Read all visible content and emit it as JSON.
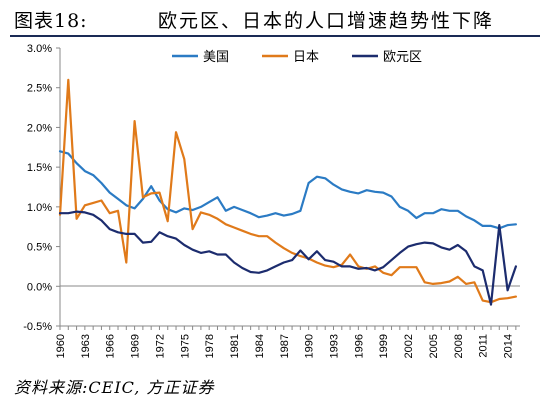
{
  "header": {
    "figure_label": "图表18:",
    "title": "欧元区、日本的人口增速趋势性下降"
  },
  "source": "资料来源:CEIC, 方正证券",
  "colors": {
    "usa": "#2b7bc4",
    "japan": "#e07a1a",
    "euro": "#1c2c6e",
    "axis": "#888888",
    "rule": "#1a2a55"
  },
  "chart_data": {
    "type": "line",
    "title": "",
    "xlabel": "",
    "ylabel": "",
    "xlim": [
      1960,
      2015.5
    ],
    "ylim": [
      -0.5,
      3.0
    ],
    "y_ticks": [
      -0.5,
      0.0,
      0.5,
      1.0,
      1.5,
      2.0,
      2.5,
      3.0
    ],
    "y_tick_labels": [
      "-0.5%",
      "0.0%",
      "0.5%",
      "1.0%",
      "1.5%",
      "2.0%",
      "2.5%",
      "3.0%"
    ],
    "x_ticks": [
      1960,
      1963,
      1966,
      1969,
      1972,
      1975,
      1978,
      1981,
      1984,
      1987,
      1990,
      1993,
      1996,
      1999,
      2002,
      2005,
      2008,
      2011,
      2014
    ],
    "x_tick_labels": [
      "1960",
      "1963",
      "1966",
      "1969",
      "1972",
      "1975",
      "1978",
      "1981",
      "1984",
      "1987",
      "1990",
      "1993",
      "1996",
      "1999",
      "2002",
      "2005",
      "2008",
      "2011",
      "2014"
    ],
    "grid": false,
    "legend_position": "top",
    "series": [
      {
        "name": "美国",
        "color": "#2b7bc4",
        "x": [
          1960,
          1961,
          1962,
          1963,
          1964,
          1965,
          1966,
          1967,
          1968,
          1969,
          1970,
          1971,
          1972,
          1973,
          1974,
          1975,
          1976,
          1977,
          1978,
          1979,
          1980,
          1981,
          1982,
          1983,
          1984,
          1985,
          1986,
          1987,
          1988,
          1989,
          1990,
          1991,
          1992,
          1993,
          1994,
          1995,
          1996,
          1997,
          1998,
          1999,
          2000,
          2001,
          2002,
          2003,
          2004,
          2005,
          2006,
          2007,
          2008,
          2009,
          2010,
          2011,
          2012,
          2013,
          2014,
          2015
        ],
        "y": [
          1.7,
          1.67,
          1.55,
          1.45,
          1.4,
          1.3,
          1.18,
          1.1,
          1.02,
          0.98,
          1.1,
          1.26,
          1.08,
          0.97,
          0.93,
          0.98,
          0.96,
          1.0,
          1.06,
          1.12,
          0.95,
          1.0,
          0.96,
          0.92,
          0.87,
          0.89,
          0.92,
          0.89,
          0.91,
          0.95,
          1.3,
          1.38,
          1.36,
          1.28,
          1.22,
          1.19,
          1.17,
          1.21,
          1.19,
          1.18,
          1.13,
          1.0,
          0.95,
          0.86,
          0.92,
          0.92,
          0.97,
          0.95,
          0.95,
          0.88,
          0.83,
          0.76,
          0.76,
          0.73,
          0.77,
          0.78
        ]
      },
      {
        "name": "日本",
        "color": "#e07a1a",
        "x": [
          1960,
          1961,
          1962,
          1963,
          1964,
          1965,
          1966,
          1967,
          1968,
          1969,
          1970,
          1971,
          1972,
          1973,
          1974,
          1975,
          1976,
          1977,
          1978,
          1979,
          1980,
          1981,
          1982,
          1983,
          1984,
          1985,
          1986,
          1987,
          1988,
          1989,
          1990,
          1991,
          1992,
          1993,
          1994,
          1995,
          1996,
          1997,
          1998,
          1999,
          2000,
          2001,
          2002,
          2003,
          2004,
          2005,
          2006,
          2007,
          2008,
          2009,
          2010,
          2011,
          2012,
          2013,
          2014,
          2015
        ],
        "y": [
          0.9,
          2.6,
          0.85,
          1.02,
          1.05,
          1.08,
          0.92,
          0.95,
          0.3,
          2.08,
          1.12,
          1.17,
          1.18,
          0.82,
          1.94,
          1.6,
          0.72,
          0.93,
          0.9,
          0.85,
          0.78,
          0.74,
          0.7,
          0.66,
          0.63,
          0.63,
          0.55,
          0.48,
          0.42,
          0.38,
          0.35,
          0.3,
          0.26,
          0.24,
          0.27,
          0.4,
          0.25,
          0.22,
          0.25,
          0.17,
          0.14,
          0.24,
          0.24,
          0.24,
          0.05,
          0.03,
          0.04,
          0.06,
          0.12,
          0.03,
          0.05,
          -0.18,
          -0.2,
          -0.16,
          -0.15,
          -0.13
        ]
      },
      {
        "name": "欧元区",
        "color": "#1c2c6e",
        "x": [
          1960,
          1961,
          1962,
          1963,
          1964,
          1965,
          1966,
          1967,
          1968,
          1969,
          1970,
          1971,
          1972,
          1973,
          1974,
          1975,
          1976,
          1977,
          1978,
          1979,
          1980,
          1981,
          1982,
          1983,
          1984,
          1985,
          1986,
          1987,
          1988,
          1989,
          1990,
          1991,
          1992,
          1993,
          1994,
          1995,
          1996,
          1997,
          1998,
          1999,
          2000,
          2001,
          2002,
          2003,
          2004,
          2005,
          2006,
          2007,
          2008,
          2009,
          2010,
          2011,
          2012,
          2013,
          2014,
          2015
        ],
        "y": [
          0.92,
          0.92,
          0.94,
          0.93,
          0.9,
          0.83,
          0.72,
          0.68,
          0.66,
          0.66,
          0.55,
          0.56,
          0.68,
          0.63,
          0.6,
          0.52,
          0.46,
          0.42,
          0.44,
          0.4,
          0.4,
          0.3,
          0.23,
          0.18,
          0.17,
          0.2,
          0.25,
          0.3,
          0.33,
          0.45,
          0.34,
          0.44,
          0.33,
          0.31,
          0.25,
          0.25,
          0.22,
          0.23,
          0.2,
          0.24,
          0.33,
          0.42,
          0.5,
          0.53,
          0.55,
          0.54,
          0.49,
          0.46,
          0.52,
          0.44,
          0.25,
          0.2,
          -0.23,
          0.77,
          -0.05,
          0.25
        ]
      }
    ]
  }
}
